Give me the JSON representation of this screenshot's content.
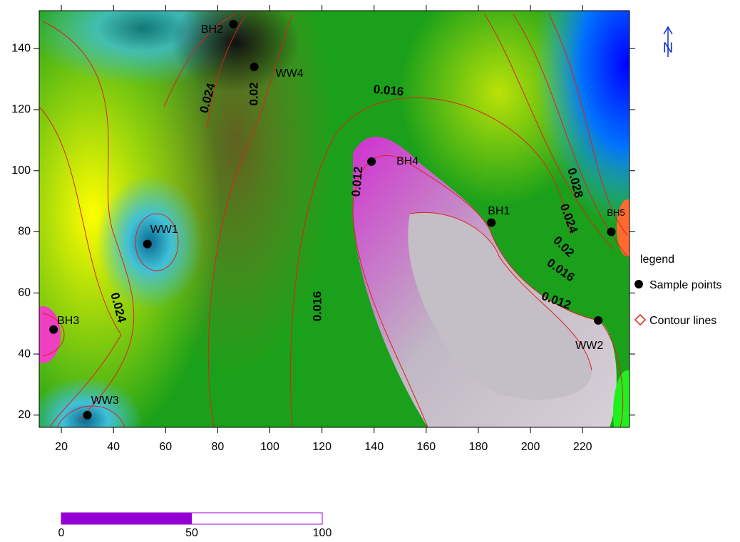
{
  "chart_data": {
    "type": "scatter",
    "xlim": [
      11.5,
      238
    ],
    "ylim": [
      16,
      152.4
    ],
    "xticks": [
      20,
      40,
      60,
      80,
      100,
      120,
      140,
      160,
      180,
      200,
      220
    ],
    "yticks": [
      20,
      40,
      60,
      80,
      100,
      120,
      140
    ],
    "points": {
      "labels": [
        "BH2",
        "WW4",
        "BH4",
        "BH1",
        "BH5",
        "WW1",
        "BH3",
        "WW2",
        "WW3"
      ],
      "x": [
        86,
        94,
        139,
        185,
        231,
        53,
        17,
        226,
        30
      ],
      "y": [
        148,
        134,
        103,
        83,
        80,
        76,
        48,
        51,
        20
      ]
    },
    "contour_labels": [
      0.024,
      0.02,
      0.016,
      0.012,
      0.016,
      0.024,
      0.028,
      0.024,
      0.02,
      0.016,
      0.012
    ],
    "legend": {
      "title": "legend",
      "items": [
        "Sample points",
        "Contour lines"
      ]
    }
  },
  "scale_bar": {
    "ticks": [
      0,
      50,
      100
    ]
  },
  "north": "N"
}
